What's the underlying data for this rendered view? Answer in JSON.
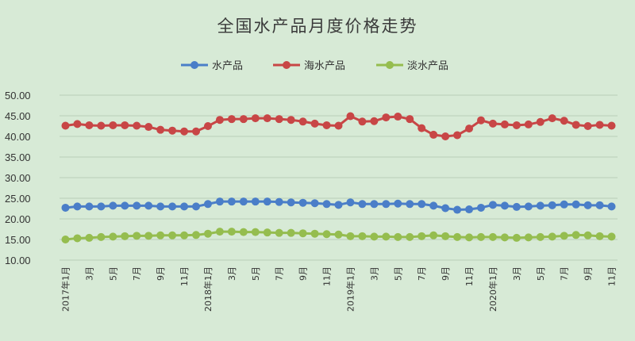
{
  "chart_data": {
    "type": "line",
    "title": "全国水产品月度价格走势",
    "xlabel": "",
    "ylabel": "",
    "ylim": [
      10,
      50
    ],
    "yticks": [
      "10.00",
      "15.00",
      "20.00",
      "25.00",
      "30.00",
      "35.00",
      "40.00",
      "45.00",
      "50.00"
    ],
    "grid": true,
    "legend_position": "top-center",
    "x": [
      "2017年1月",
      "2月",
      "3月",
      "4月",
      "5月",
      "6月",
      "7月",
      "8月",
      "9月",
      "10月",
      "11月",
      "12月",
      "2018年1月",
      "2月",
      "3月",
      "4月",
      "5月",
      "6月",
      "7月",
      "8月",
      "9月",
      "10月",
      "11月",
      "12月",
      "2019年1月",
      "2月",
      "3月",
      "4月",
      "5月",
      "6月",
      "7月",
      "8月",
      "9月",
      "10月",
      "11月",
      "12月",
      "2020年1月",
      "2月",
      "3月",
      "4月",
      "5月",
      "6月",
      "7月",
      "8月",
      "9月",
      "10月",
      "11月"
    ],
    "xtick_labels": [
      "2017年1月",
      "",
      "3月",
      "",
      "5月",
      "",
      "7月",
      "",
      "9月",
      "",
      "11月",
      "",
      "2018年1月",
      "",
      "3月",
      "",
      "5月",
      "",
      "7月",
      "",
      "9月",
      "",
      "11月",
      "",
      "2019年1月",
      "",
      "3月",
      "",
      "5月",
      "",
      "7月",
      "",
      "9月",
      "",
      "11月",
      "",
      "2020年1月",
      "",
      "3月",
      "",
      "5月",
      "",
      "7月",
      "",
      "9月",
      "",
      "11月"
    ],
    "series": [
      {
        "name": "水产品",
        "color": "#4a7ec8",
        "values": [
          22.7,
          23.0,
          23.0,
          23.0,
          23.2,
          23.2,
          23.2,
          23.2,
          23.0,
          23.0,
          23.0,
          23.0,
          23.6,
          24.2,
          24.2,
          24.2,
          24.2,
          24.2,
          24.1,
          24.0,
          23.9,
          23.8,
          23.6,
          23.4,
          24.0,
          23.6,
          23.6,
          23.6,
          23.7,
          23.6,
          23.6,
          23.2,
          22.6,
          22.2,
          22.3,
          22.7,
          23.4,
          23.2,
          22.9,
          23.0,
          23.2,
          23.3,
          23.5,
          23.5,
          23.3,
          23.3,
          23.0
        ]
      },
      {
        "name": "海水产品",
        "color": "#c84646",
        "values": [
          42.6,
          43.0,
          42.7,
          42.6,
          42.7,
          42.7,
          42.6,
          42.3,
          41.6,
          41.4,
          41.2,
          41.2,
          42.5,
          44.0,
          44.2,
          44.2,
          44.4,
          44.4,
          44.2,
          44.0,
          43.6,
          43.1,
          42.7,
          42.6,
          44.9,
          43.6,
          43.7,
          44.6,
          44.8,
          44.2,
          42.0,
          40.4,
          40.0,
          40.3,
          41.9,
          43.9,
          43.1,
          42.9,
          42.7,
          42.9,
          43.5,
          44.4,
          43.8,
          42.8,
          42.5,
          42.8,
          42.6
        ]
      },
      {
        "name": "淡水产品",
        "color": "#95bd4f",
        "values": [
          15.0,
          15.3,
          15.4,
          15.6,
          15.7,
          15.8,
          15.9,
          15.9,
          16.0,
          16.0,
          16.0,
          16.1,
          16.4,
          16.9,
          16.9,
          16.8,
          16.8,
          16.7,
          16.6,
          16.6,
          16.5,
          16.4,
          16.3,
          16.2,
          15.8,
          15.8,
          15.7,
          15.7,
          15.6,
          15.6,
          15.8,
          16.0,
          15.8,
          15.6,
          15.5,
          15.6,
          15.6,
          15.5,
          15.4,
          15.5,
          15.6,
          15.7,
          15.9,
          16.1,
          16.0,
          15.8,
          15.7
        ]
      }
    ]
  }
}
